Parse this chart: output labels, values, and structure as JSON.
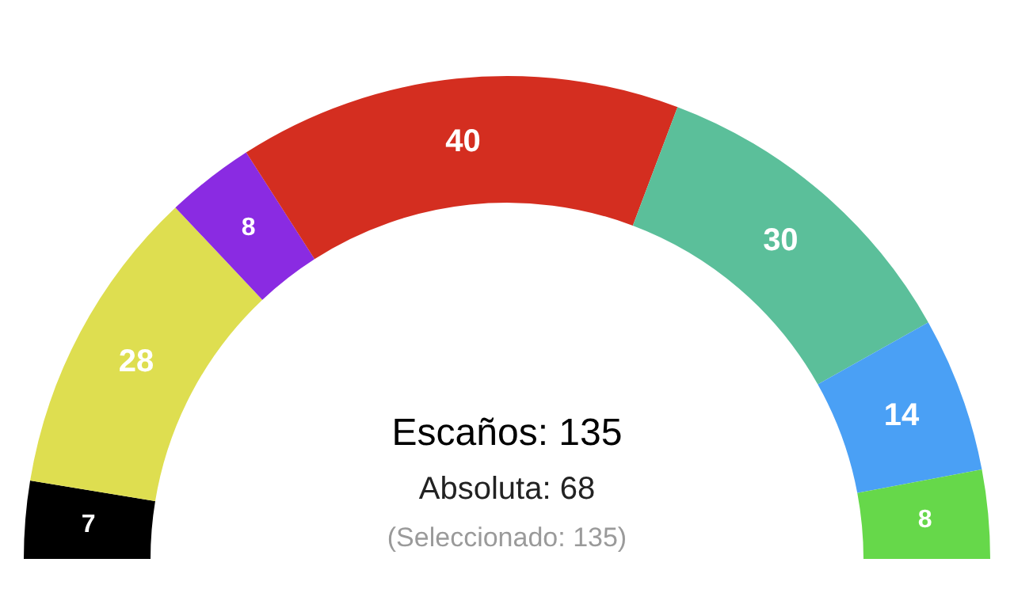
{
  "chart_data": {
    "type": "donut",
    "categories": [
      null,
      null,
      null,
      null,
      null,
      null,
      null
    ],
    "values": [
      7,
      28,
      8,
      40,
      30,
      14,
      8
    ],
    "colors": [
      "#000000",
      "#dede50",
      "#8a2be2",
      "#d42e20",
      "#5bbf9a",
      "#4aa0f5",
      "#66d84a"
    ],
    "data_labels": true,
    "legend": false,
    "annotations": [
      "Escaños: 135",
      "Absoluta: 68",
      "(Seleccionado: 135)"
    ]
  }
}
